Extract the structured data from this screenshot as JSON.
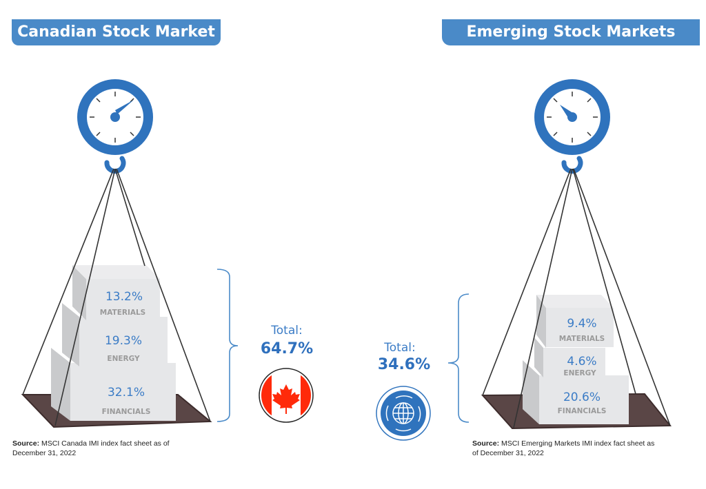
{
  "left": {
    "title": "Canadian Stock Market",
    "sectors": [
      {
        "value": "13.2%",
        "label": "MATERIALS"
      },
      {
        "value": "19.3%",
        "label": "ENERGY"
      },
      {
        "value": "32.1%",
        "label": "FINANCIALS"
      }
    ],
    "total_label": "Total:",
    "total_value": "64.7%",
    "icon": "canada-flag-icon",
    "source_label": "Source:",
    "source_text": " MSCI Canada IMI index fact sheet as of",
    "source_text2": "December 31, 2022"
  },
  "right": {
    "title": "Emerging Stock Markets",
    "sectors": [
      {
        "value": "9.4%",
        "label": "MATERIALS"
      },
      {
        "value": "4.6%",
        "label": "ENERGY"
      },
      {
        "value": "20.6%",
        "label": "FINANCIALS"
      }
    ],
    "total_label": "Total:",
    "total_value": "34.6%",
    "icon": "globe-icon",
    "source_label": "Source:",
    "source_text": " MSCI Emerging Markets IMI index fact sheet as",
    "source_text2": "of December 31, 2022"
  },
  "colors": {
    "accent": "#2f73bd",
    "banner": "#4a8ac8",
    "platform": "#5a4646",
    "box": "#e6e7e9",
    "flag_red": "#ff2a0a"
  }
}
